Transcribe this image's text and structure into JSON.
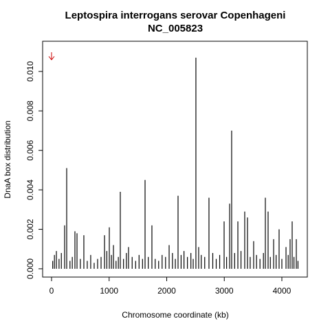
{
  "chart_data": {
    "type": "spike",
    "title": "Leptospira interrogans serovar Copenhageni",
    "subtitle": "NC_005823",
    "x_label": "Chromosome coordinate (kb)",
    "y_label": "DnaA box distribution",
    "color": "#000000",
    "marker": {
      "x": 0,
      "color": "#cc0000"
    },
    "xlim": [
      -155,
      4442
    ],
    "ylim": [
      -0.00042,
      0.01153
    ],
    "xticks": [
      0,
      1000,
      2000,
      3000,
      4000
    ],
    "yticks": [
      {
        "value": 0,
        "label": "0.000"
      },
      {
        "value": 0.002,
        "label": "0.002"
      },
      {
        "value": 0.004,
        "label": "0.004"
      },
      {
        "value": 0.006,
        "label": "0.006"
      },
      {
        "value": 0.008,
        "label": "0.008"
      },
      {
        "value": 0.01,
        "label": "0.010"
      }
    ],
    "x": [
      20,
      50,
      84,
      130,
      170,
      227,
      263,
      320,
      360,
      406,
      442,
      500,
      561,
      620,
      680,
      740,
      800,
      860,
      920,
      960,
      1003,
      1040,
      1075,
      1120,
      1160,
      1194,
      1250,
      1300,
      1337,
      1400,
      1460,
      1520,
      1580,
      1624,
      1680,
      1743,
      1800,
      1860,
      1920,
      1980,
      2042,
      2100,
      2150,
      2197,
      2250,
      2300,
      2360,
      2420,
      2460,
      2507,
      2555,
      2600,
      2660,
      2734,
      2800,
      2860,
      2920,
      2997,
      3040,
      3093,
      3128,
      3180,
      3236,
      3290,
      3355,
      3403,
      3450,
      3510,
      3560,
      3620,
      3680,
      3713,
      3761,
      3800,
      3857,
      3900,
      3952,
      4000,
      4072,
      4110,
      4143,
      4179,
      4210,
      4251,
      4280
    ],
    "values": [
      0.0004,
      0.0007,
      0.0009,
      0.0005,
      0.0008,
      0.0022,
      0.0051,
      0.0004,
      0.0006,
      0.0019,
      0.0018,
      0.0005,
      0.0017,
      0.0004,
      0.0007,
      0.0003,
      0.0005,
      0.0006,
      0.0017,
      0.0009,
      0.0021,
      0.0007,
      0.0012,
      0.0004,
      0.0006,
      0.0039,
      0.0005,
      0.0008,
      0.0011,
      0.0006,
      0.0004,
      0.0007,
      0.0005,
      0.0045,
      0.0006,
      0.0022,
      0.0005,
      0.0004,
      0.0007,
      0.0006,
      0.0012,
      0.0008,
      0.0005,
      0.0037,
      0.0007,
      0.0009,
      0.0006,
      0.0008,
      0.0005,
      0.0107,
      0.0011,
      0.0007,
      0.0006,
      0.0036,
      0.0008,
      0.0005,
      0.0007,
      0.0024,
      0.0006,
      0.0033,
      0.007,
      0.0008,
      0.0024,
      0.0009,
      0.0029,
      0.0026,
      0.0006,
      0.0014,
      0.0007,
      0.0005,
      0.0008,
      0.0036,
      0.0029,
      0.0006,
      0.0015,
      0.0007,
      0.002,
      0.0005,
      0.0011,
      0.0007,
      0.0015,
      0.0024,
      0.0006,
      0.0015,
      0.0004
    ]
  }
}
